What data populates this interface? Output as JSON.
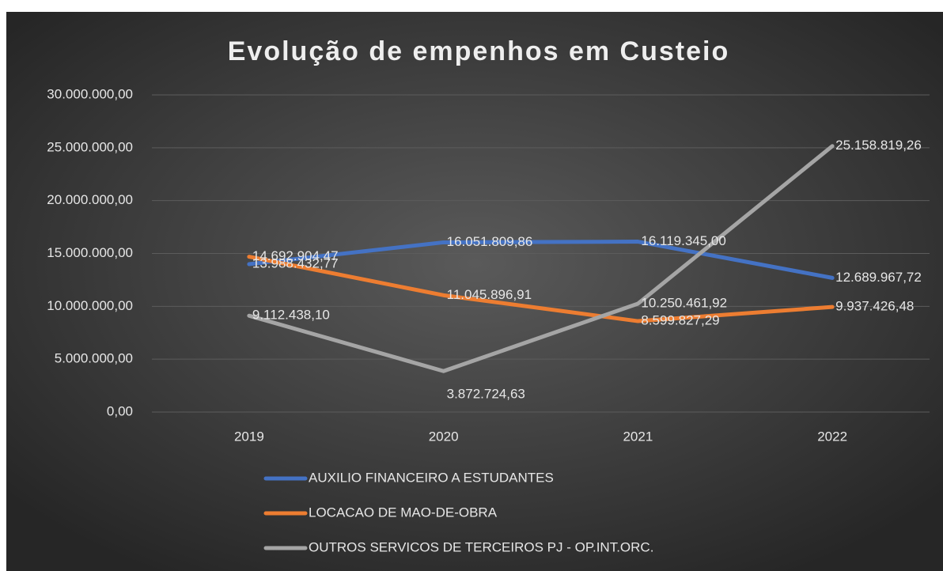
{
  "chart_data": {
    "type": "line",
    "title": "Evolução de empenhos em Custeio",
    "categories": [
      "2019",
      "2020",
      "2021",
      "2022"
    ],
    "series": [
      {
        "name": "AUXILIO FINANCEIRO A ESTUDANTES",
        "color": "#4472c4",
        "values": [
          13988432.77,
          16051809.86,
          16119345.0,
          12689967.72
        ],
        "value_labels": [
          "13.988.432,77",
          "16.051.809,86",
          "16.119.345,00",
          "12.689.967,72"
        ]
      },
      {
        "name": "LOCACAO DE MAO-DE-OBRA",
        "color": "#ed7d31",
        "values": [
          14692904.47,
          11045896.91,
          8599827.29,
          9937426.48
        ],
        "value_labels": [
          "14.692.904,47",
          "11.045.896,91",
          "8.599.827,29",
          "9.937.426,48"
        ]
      },
      {
        "name": "OUTROS SERVICOS DE TERCEIROS PJ - OP.INT.ORC.",
        "color": "#a5a5a5",
        "values": [
          9112438.1,
          3872724.63,
          10250461.92,
          25158819.26
        ],
        "value_labels": [
          "9.112.438,10",
          "3.872.724,63",
          "10.250.461,92",
          "25.158.819,26"
        ]
      }
    ],
    "ylim": [
      0,
      30000000
    ],
    "yticks": [
      {
        "value": 0,
        "label": "0,00"
      },
      {
        "value": 5000000,
        "label": "5.000.000,00"
      },
      {
        "value": 10000000,
        "label": "10.000.000,00"
      },
      {
        "value": 15000000,
        "label": "15.000.000,00"
      },
      {
        "value": 20000000,
        "label": "20.000.000,00"
      },
      {
        "value": 25000000,
        "label": "25.000.000,00"
      },
      {
        "value": 30000000,
        "label": "30.000.000,00"
      }
    ],
    "grid": true,
    "legend": "bottom"
  }
}
